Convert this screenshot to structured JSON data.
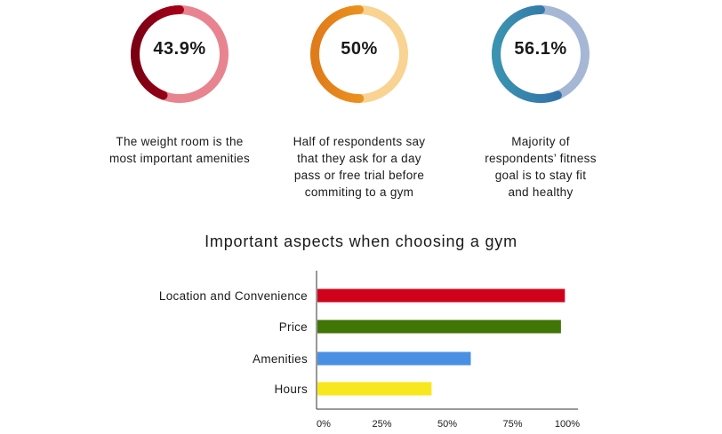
{
  "donuts": [
    {
      "value_label": "43.9%",
      "value": 43.9,
      "caption": "The weight room is the most important amenities",
      "colors": {
        "main_start": "#d0021b",
        "main_end": "#7a0014",
        "rest": "#e8848f"
      }
    },
    {
      "value_label": "50%",
      "value": 50,
      "caption": "Half of respondents say that they ask for a day pass or free trial before commiting to a gym",
      "colors": {
        "main_start": "#f5a623",
        "main_end": "#e07b1a",
        "rest": "#f9d392"
      }
    },
    {
      "value_label": "56.1%",
      "value": 56.1,
      "caption": "Majority of respondents’ fitness goal is to stay fit and healthy",
      "colors": {
        "main_start": "#2f65a7",
        "main_end": "#3a93b0",
        "rest": "#a6b7d5"
      }
    }
  ],
  "chart_data": {
    "type": "bar",
    "orientation": "horizontal",
    "title": "Important aspects when choosing a gym",
    "categories": [
      "Location and Convenience",
      "Price",
      "Amenities",
      "Hours"
    ],
    "values": [
      95,
      93.5,
      59,
      44
    ],
    "colors": [
      "#d0021b",
      "#417505",
      "#4a90e2",
      "#f8e71c"
    ],
    "xlim": [
      0,
      100
    ],
    "xticks": [
      "0%",
      "25%",
      "50%",
      "75%",
      "100%"
    ],
    "xlabel": "",
    "ylabel": "",
    "grid": false,
    "legend": "none"
  }
}
